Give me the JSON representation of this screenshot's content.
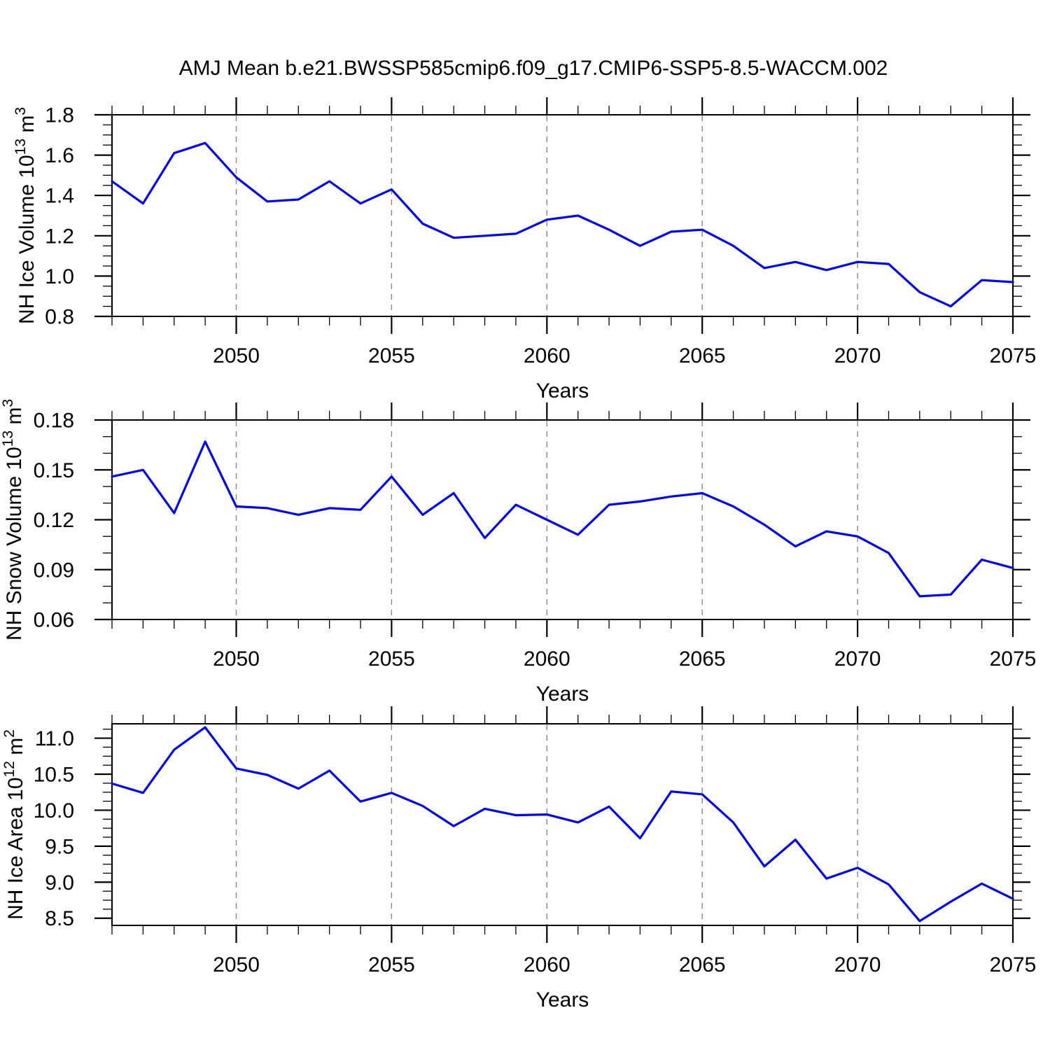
{
  "title": "AMJ Mean b.e21.BWSSP585cmip6.f09_g17.CMIP6-SSP5-8.5-WACCM.002",
  "figure": {
    "line_color": "#0000ff",
    "grid_color": "#888888",
    "axis_color": "#000000",
    "background": "#ffffff"
  },
  "x_axis": {
    "label": "Years",
    "range": [
      2046,
      2075
    ],
    "years": [
      2046,
      2047,
      2048,
      2049,
      2050,
      2051,
      2052,
      2053,
      2054,
      2055,
      2056,
      2057,
      2058,
      2059,
      2060,
      2061,
      2062,
      2063,
      2064,
      2065,
      2066,
      2067,
      2068,
      2069,
      2070,
      2071,
      2072,
      2073,
      2074,
      2075
    ],
    "major_tick_years": [
      2050,
      2055,
      2060,
      2065,
      2070,
      2075
    ],
    "major_tick_labels": [
      "2050",
      "2055",
      "2060",
      "2065",
      "2070",
      "2075"
    ],
    "gridline_years": [
      2050,
      2055,
      2060,
      2065,
      2070
    ],
    "minor_step_years": 1
  },
  "chart_data": [
    {
      "type": "line",
      "ylabel_text": "NH Ice Volume 10^13 m^3",
      "ylabel_segments": [
        {
          "t": "NH Ice Volume 10"
        },
        {
          "t": "13",
          "sup": true
        },
        {
          "t": " m"
        },
        {
          "t": "3",
          "sup": true
        }
      ],
      "ylim": [
        0.8,
        1.8
      ],
      "ytick_values": [
        1.8,
        1.6,
        1.4,
        1.2,
        1.0,
        0.8
      ],
      "ytick_labels": [
        "1.8",
        "1.6",
        "1.4",
        "1.2",
        "1.0",
        "0.8"
      ],
      "yminor_step": 0.05,
      "values": [
        1.47,
        1.36,
        1.61,
        1.66,
        1.49,
        1.37,
        1.38,
        1.47,
        1.36,
        1.43,
        1.26,
        1.19,
        1.2,
        1.21,
        1.28,
        1.3,
        1.23,
        1.15,
        1.22,
        1.23,
        1.15,
        1.04,
        1.07,
        1.03,
        1.07,
        1.06,
        0.92,
        0.85,
        0.98,
        0.97
      ]
    },
    {
      "type": "line",
      "ylabel_text": "NH Snow Volume 10^13 m^3",
      "ylabel_segments": [
        {
          "t": "NH Snow Volume 10"
        },
        {
          "t": "13",
          "sup": true
        },
        {
          "t": " m"
        },
        {
          "t": "3",
          "sup": true
        }
      ],
      "ylim": [
        0.06,
        0.18
      ],
      "ytick_values": [
        0.18,
        0.15,
        0.12,
        0.09,
        0.06
      ],
      "ytick_labels": [
        "0.18",
        "0.15",
        "0.12",
        "0.09",
        "0.06"
      ],
      "yminor_step": 0.01,
      "values": [
        0.146,
        0.15,
        0.124,
        0.167,
        0.128,
        0.127,
        0.123,
        0.127,
        0.126,
        0.146,
        0.123,
        0.136,
        0.109,
        0.129,
        0.12,
        0.111,
        0.129,
        0.131,
        0.134,
        0.136,
        0.128,
        0.117,
        0.104,
        0.113,
        0.11,
        0.1,
        0.074,
        0.075,
        0.096,
        0.091
      ]
    },
    {
      "type": "line",
      "ylabel_text": "NH Ice Area 10^12 m^2",
      "ylabel_segments": [
        {
          "t": "NH Ice Area 10"
        },
        {
          "t": "12",
          "sup": true
        },
        {
          "t": " m"
        },
        {
          "t": "2",
          "sup": true
        }
      ],
      "ylim": [
        8.4,
        11.2
      ],
      "ytick_values": [
        11.0,
        10.5,
        10.0,
        9.5,
        9.0,
        8.5
      ],
      "ytick_labels": [
        "11.0",
        "10.5",
        "10.0",
        "9.5",
        "9.0",
        "8.5"
      ],
      "yminor_step": 0.125,
      "values": [
        10.37,
        10.24,
        10.84,
        11.15,
        10.58,
        10.49,
        10.3,
        10.55,
        10.12,
        10.24,
        10.06,
        9.78,
        10.02,
        9.93,
        9.94,
        9.83,
        10.05,
        9.61,
        10.26,
        10.22,
        9.83,
        9.22,
        9.59,
        9.05,
        9.2,
        8.97,
        8.46,
        8.73,
        8.98,
        8.77
      ]
    }
  ]
}
